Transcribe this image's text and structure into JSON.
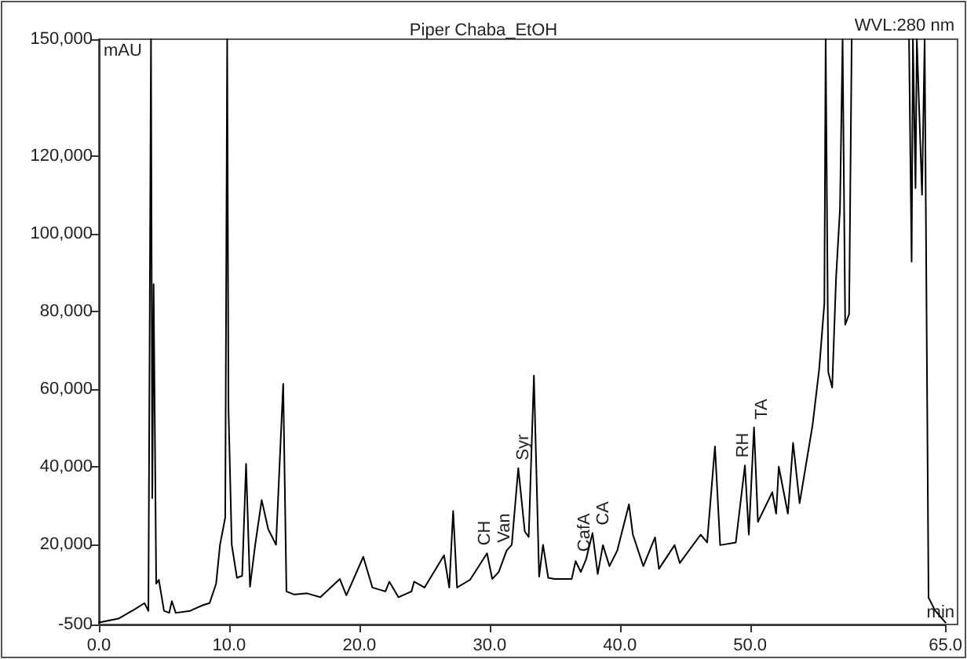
{
  "chart_data": {
    "type": "line",
    "title": "Piper Chaba_EtOH",
    "marker": "none",
    "grid": false,
    "x": [
      0,
      1.5,
      2.8,
      3.5,
      3.8,
      4.0,
      4.1,
      4.2,
      4.4,
      4.6,
      5.0,
      5.4,
      5.6,
      5.9,
      7.0,
      8.0,
      8.5,
      9.0,
      9.3,
      9.7,
      9.85,
      9.95,
      10.2,
      10.6,
      11.0,
      11.3,
      11.6,
      12.0,
      12.5,
      13.0,
      13.6,
      14.15,
      14.4,
      15.0,
      16.0,
      17.0,
      18.5,
      19.0,
      20.3,
      21.0,
      22.0,
      22.3,
      23.0,
      24.0,
      24.2,
      25.0,
      26.5,
      26.9,
      27.2,
      27.5,
      28.5,
      29.8,
      30.2,
      30.7,
      31.3,
      31.7,
      32.2,
      32.7,
      33.0,
      33.4,
      33.8,
      34.1,
      34.5,
      35.0,
      36.3,
      36.6,
      37.0,
      37.4,
      37.9,
      38.3,
      38.7,
      39.2,
      39.8,
      40.7,
      41.0,
      41.8,
      42.7,
      43.0,
      44.2,
      44.6,
      46.2,
      46.7,
      47.3,
      47.7,
      48.9,
      49.6,
      49.9,
      50.3,
      50.6,
      51.7,
      52.0,
      52.2,
      52.9,
      53.3,
      53.8,
      54.8,
      55.3,
      55.7,
      55.8,
      56.0,
      56.3,
      56.6,
      56.9,
      57.1,
      57.3,
      57.6,
      57.8,
      58.0,
      62.2,
      62.4,
      62.5,
      62.7,
      62.8,
      63.2,
      63.4,
      63.7,
      64.2,
      65.0
    ],
    "values": [
      0,
      1000,
      3500,
      5000,
      3000,
      150000,
      32000,
      87000,
      10000,
      11000,
      3000,
      2500,
      5500,
      2500,
      3000,
      4500,
      5000,
      10000,
      20000,
      27000,
      150000,
      55000,
      20000,
      11500,
      12000,
      40800,
      9200,
      20000,
      31500,
      24000,
      20000,
      61400,
      8000,
      7200,
      7500,
      6500,
      11200,
      7000,
      16900,
      9000,
      8000,
      10500,
      6500,
      8000,
      10500,
      9000,
      17300,
      9000,
      28700,
      9000,
      11000,
      17800,
      11200,
      13000,
      18500,
      20000,
      39700,
      23400,
      22000,
      63500,
      11800,
      20000,
      11500,
      11200,
      11200,
      15800,
      13000,
      16200,
      23000,
      12500,
      19900,
      14500,
      18500,
      30400,
      22600,
      14500,
      21900,
      13800,
      19900,
      15300,
      22600,
      20600,
      45300,
      19900,
      20600,
      40400,
      22600,
      50200,
      25900,
      33500,
      28000,
      40100,
      28000,
      46200,
      30700,
      50900,
      65100,
      82100,
      150000,
      64400,
      60400,
      88700,
      106400,
      150000,
      76600,
      79300,
      150000,
      null,
      150000,
      92800,
      150000,
      111700,
      150000,
      110000,
      150000,
      6400,
      3100,
      0
    ],
    "xlim": [
      0,
      65
    ],
    "ylim": [
      -500,
      150000
    ],
    "xticks": [
      {
        "value": 0,
        "label": "0.0"
      },
      {
        "value": 10,
        "label": "10.0"
      },
      {
        "value": 20,
        "label": "20.0"
      },
      {
        "value": 30,
        "label": "30.0"
      },
      {
        "value": 40,
        "label": "40.0"
      },
      {
        "value": 50,
        "label": "50.0"
      },
      {
        "value": 65,
        "label": "65.0"
      }
    ],
    "yticks": [
      {
        "value": -500,
        "label": "-500"
      },
      {
        "value": 20000,
        "label": "20,000"
      },
      {
        "value": 40000,
        "label": "40,000"
      },
      {
        "value": 60000,
        "label": "60,000"
      },
      {
        "value": 80000,
        "label": "80,000"
      },
      {
        "value": 100000,
        "label": "100,000"
      },
      {
        "value": 120000,
        "label": "120,000"
      },
      {
        "value": 150000,
        "label": "150,000"
      }
    ],
    "annotations": [
      "mAU",
      "WVL:280 nm",
      "min",
      {
        "text": "CH",
        "x": 29.8,
        "y": 17800
      },
      {
        "text": "Van",
        "x": 31.3,
        "y": 18500
      },
      {
        "text": "Syr",
        "x": 32.2,
        "y": 39700
      },
      {
        "text": "CafA",
        "x": 37.4,
        "y": 16200
      },
      {
        "text": "CA",
        "x": 37.9,
        "y": 23000
      },
      {
        "text": "RH",
        "x": 49.6,
        "y": 40400
      },
      {
        "text": "TA",
        "x": 50.3,
        "y": 50200
      }
    ]
  }
}
